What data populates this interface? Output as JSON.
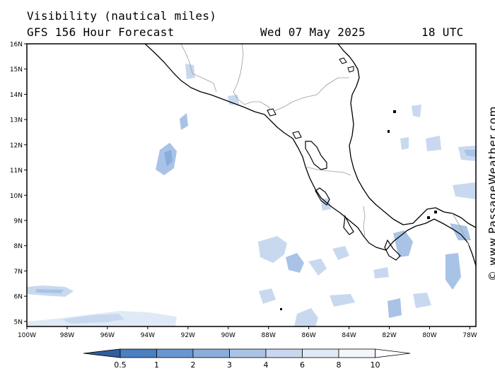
{
  "header": {
    "title": "Visibility (nautical miles)",
    "forecast": "GFS 156 Hour Forecast",
    "date": "Wed 07 May 2025",
    "time": "18 UTC"
  },
  "credit": "© www.PassageWeather.com",
  "axes": {
    "lat_labels": [
      "16N",
      "15N",
      "14N",
      "13N",
      "12N",
      "11N",
      "10N",
      "9N",
      "8N",
      "7N",
      "6N",
      "5N"
    ],
    "lat_values": [
      16,
      15,
      14,
      13,
      12,
      11,
      10,
      9,
      8,
      7,
      6,
      5
    ],
    "lon_labels": [
      "100W",
      "98W",
      "96W",
      "94W",
      "92W",
      "90W",
      "88W",
      "86W",
      "84W",
      "82W",
      "80W",
      "78W"
    ],
    "lon_values": [
      -100,
      -98,
      -96,
      -94,
      -92,
      -90,
      -88,
      -86,
      -84,
      -82,
      -80,
      -78
    ],
    "lat_range": [
      4.8,
      16.0
    ],
    "lon_range": [
      -100.0,
      -77.7
    ]
  },
  "colorbar": {
    "labels": [
      "0.5",
      "1",
      "2",
      "3",
      "4",
      "6",
      "8",
      "10"
    ],
    "colors": [
      "#2f5f9f",
      "#4a7fc0",
      "#6a95cf",
      "#8aaddb",
      "#a9c3e6",
      "#c8d9ef",
      "#e0eaf6",
      "#f3f7fc",
      "#ffffff"
    ]
  }
}
